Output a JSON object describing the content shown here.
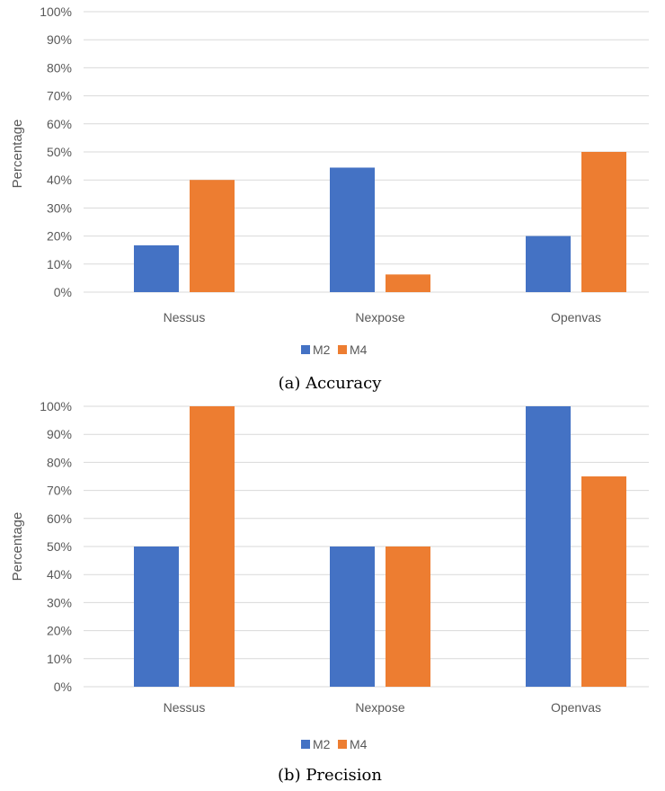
{
  "colors": {
    "M2": "#4472c4",
    "M4": "#ed7d31"
  },
  "chart_data": [
    {
      "type": "bar",
      "caption": "(a) Accuracy",
      "ylabel": "Percentage",
      "categories": [
        "Nessus",
        "Nexpose",
        "Openvas"
      ],
      "yticks": [
        "0%",
        "10%",
        "20%",
        "30%",
        "40%",
        "50%",
        "60%",
        "70%",
        "80%",
        "90%",
        "100%"
      ],
      "ylim": [
        0,
        100
      ],
      "grid": true,
      "legend_position": "bottom",
      "series": [
        {
          "name": "M2",
          "values": [
            16.7,
            44.4,
            20
          ]
        },
        {
          "name": "M4",
          "values": [
            40,
            6.3,
            50
          ]
        }
      ]
    },
    {
      "type": "bar",
      "caption": "(b) Precision",
      "ylabel": "Percentage",
      "categories": [
        "Nessus",
        "Nexpose",
        "Openvas"
      ],
      "yticks": [
        "0%",
        "10%",
        "20%",
        "30%",
        "40%",
        "50%",
        "60%",
        "70%",
        "80%",
        "90%",
        "100%"
      ],
      "ylim": [
        0,
        100
      ],
      "grid": true,
      "legend_position": "bottom",
      "series": [
        {
          "name": "M2",
          "values": [
            50,
            50,
            100
          ]
        },
        {
          "name": "M4",
          "values": [
            100,
            50,
            75
          ]
        }
      ]
    }
  ]
}
